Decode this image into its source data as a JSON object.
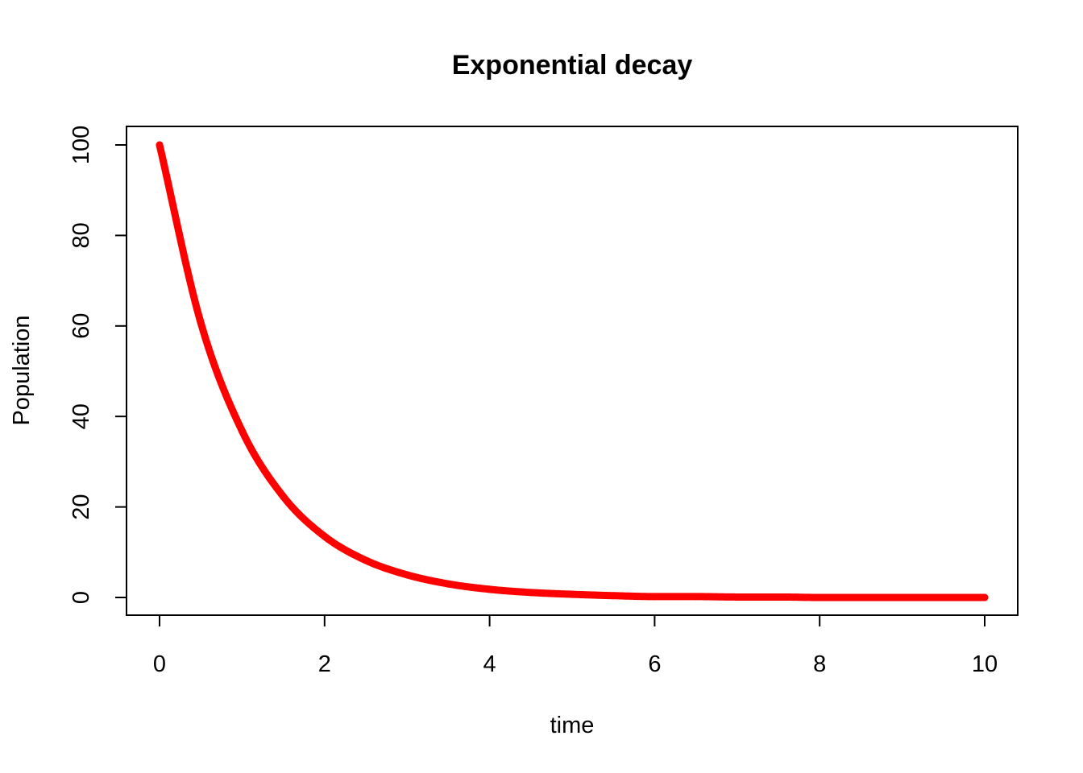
{
  "chart_data": {
    "type": "line",
    "title": "Exponential decay",
    "xlabel": "time",
    "ylabel": "Population",
    "xlim": [
      0,
      10
    ],
    "ylim": [
      0,
      100
    ],
    "x_ticks": [
      0,
      2,
      4,
      6,
      8,
      10
    ],
    "y_ticks": [
      0,
      20,
      40,
      60,
      80,
      100
    ],
    "x_tick_labels": [
      "0",
      "2",
      "4",
      "6",
      "8",
      "10"
    ],
    "y_tick_labels": [
      "0",
      "20",
      "40",
      "60",
      "80",
      "100"
    ],
    "grid": false,
    "legend": "none",
    "series": [
      {
        "color": "#ff0000",
        "x": [
          0,
          0.5,
          1,
          1.5,
          2,
          2.5,
          3,
          3.5,
          4,
          4.5,
          5,
          5.5,
          6,
          6.5,
          7,
          7.5,
          8,
          8.5,
          9,
          9.5,
          10
        ],
        "y": [
          100,
          60.7,
          36.8,
          22.3,
          13.5,
          8.2,
          5.0,
          3.0,
          1.8,
          1.1,
          0.7,
          0.4,
          0.2,
          0.2,
          0.1,
          0.1,
          0.0,
          0.0,
          0.0,
          0.0,
          0.0
        ]
      }
    ]
  }
}
